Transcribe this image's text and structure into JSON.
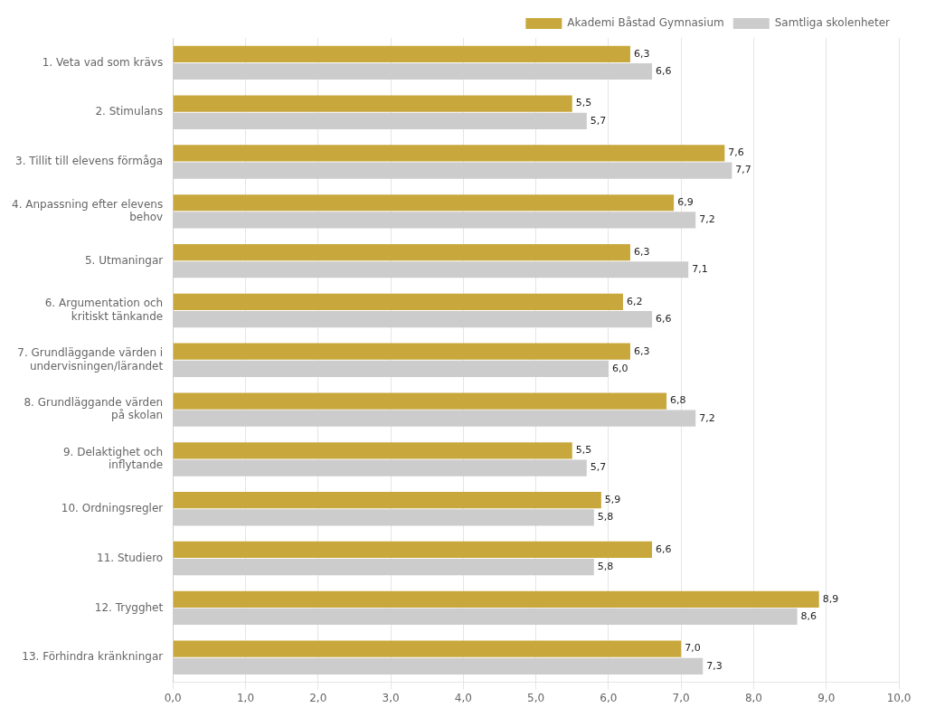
{
  "chart_data": {
    "type": "bar",
    "orientation": "horizontal",
    "categories": [
      "1. Veta vad som krävs",
      "2. Stimulans",
      "3. Tillit till elevens förmåga",
      "4. Anpassning efter elevens\nbehov",
      "5. Utmaningar",
      "6. Argumentation och\nkritiskt tänkande",
      "7. Grundläggande värden i\nundervisningen/lärandet",
      "8. Grundläggande värden\npå skolan",
      "9. Delaktighet och\ninflytande",
      "10. Ordningsregler",
      "11. Studiero",
      "12. Trygghet",
      "13. Förhindra kränkningar"
    ],
    "series": [
      {
        "name": "Akademi Båstad Gymnasium",
        "color": "#C8A83C",
        "values": [
          6.3,
          5.5,
          7.6,
          6.9,
          6.3,
          6.2,
          6.3,
          6.8,
          5.5,
          5.9,
          6.6,
          8.9,
          7.0
        ],
        "value_labels": [
          "6,3",
          "5,5",
          "7,6",
          "6,9",
          "6,3",
          "6,2",
          "6,3",
          "6,8",
          "5,5",
          "5,9",
          "6,6",
          "8,9",
          "7,0"
        ]
      },
      {
        "name": "Samtliga skolenheter",
        "color": "#CCCCCC",
        "values": [
          6.6,
          5.7,
          7.7,
          7.2,
          7.1,
          6.6,
          6.0,
          7.2,
          5.7,
          5.8,
          5.8,
          8.6,
          7.3
        ],
        "value_labels": [
          "6,6",
          "5,7",
          "7,7",
          "7,2",
          "7,1",
          "6,6",
          "6,0",
          "7,2",
          "5,7",
          "5,8",
          "5,8",
          "8,6",
          "7,3"
        ]
      }
    ],
    "xlim": [
      0,
      10
    ],
    "xticks": [
      {
        "value": 0,
        "label": "0,0"
      },
      {
        "value": 1,
        "label": "1,0"
      },
      {
        "value": 2,
        "label": "2,0"
      },
      {
        "value": 3,
        "label": "3,0"
      },
      {
        "value": 4,
        "label": "4,0"
      },
      {
        "value": 5,
        "label": "5,0"
      },
      {
        "value": 6,
        "label": "6,0"
      },
      {
        "value": 7,
        "label": "7,0"
      },
      {
        "value": 8,
        "label": "8,0"
      },
      {
        "value": 9,
        "label": "9,0"
      },
      {
        "value": 10,
        "label": "10,0"
      }
    ],
    "grid": true,
    "legend": "upper right",
    "data_labels": true
  }
}
